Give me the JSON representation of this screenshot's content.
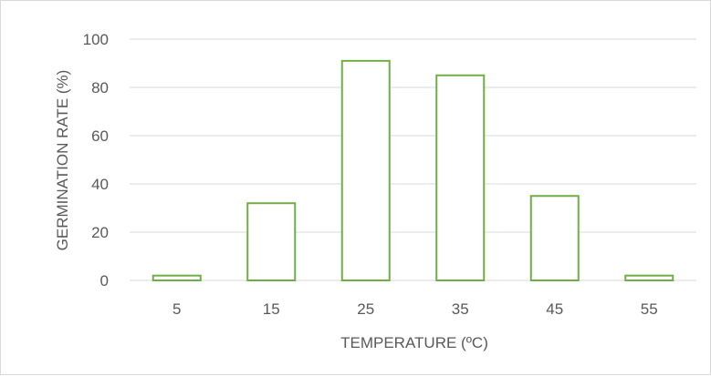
{
  "chart_data": {
    "type": "bar",
    "categories": [
      "5",
      "15",
      "25",
      "35",
      "45",
      "55"
    ],
    "values": [
      2,
      32,
      91,
      85,
      35,
      2
    ],
    "title": "",
    "xlabel": "TEMPERATURE (ºC)",
    "ylabel": "GERMINATION RATE (%)",
    "ylim": [
      0,
      100
    ],
    "yticks": [
      "0",
      "20",
      "40",
      "60",
      "80",
      "100"
    ],
    "grid": true,
    "bar_fill": "#ffffff",
    "bar_stroke": "#70ad47",
    "grid_color": "#d9d9d9",
    "text_color": "#595959"
  }
}
